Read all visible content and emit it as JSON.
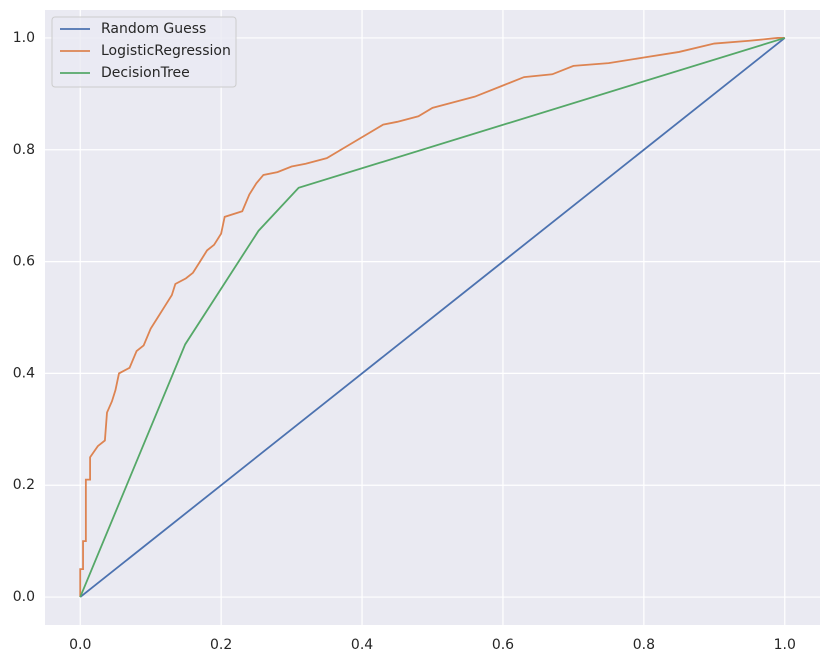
{
  "chart_data": {
    "type": "line",
    "series": [
      {
        "name": "Random Guess",
        "color": "#4c72b0",
        "x": [
          0,
          1
        ],
        "values": [
          0,
          1
        ]
      },
      {
        "name": "LogisticRegression",
        "color": "#dd8452",
        "x": [
          0,
          0,
          0.004,
          0.004,
          0.008,
          0.008,
          0.014,
          0.014,
          0.025,
          0.035,
          0.038,
          0.045,
          0.05,
          0.055,
          0.07,
          0.08,
          0.09,
          0.1,
          0.11,
          0.12,
          0.13,
          0.135,
          0.15,
          0.16,
          0.17,
          0.18,
          0.19,
          0.2,
          0.205,
          0.23,
          0.24,
          0.25,
          0.26,
          0.28,
          0.3,
          0.32,
          0.35,
          0.37,
          0.39,
          0.41,
          0.43,
          0.45,
          0.48,
          0.5,
          0.53,
          0.56,
          0.6,
          0.63,
          0.67,
          0.7,
          0.75,
          0.8,
          0.85,
          0.9,
          0.95,
          0.99,
          1
        ],
        "values": [
          0,
          0.05,
          0.05,
          0.1,
          0.1,
          0.21,
          0.21,
          0.25,
          0.27,
          0.28,
          0.33,
          0.35,
          0.37,
          0.4,
          0.41,
          0.44,
          0.45,
          0.48,
          0.5,
          0.52,
          0.54,
          0.56,
          0.57,
          0.58,
          0.6,
          0.62,
          0.63,
          0.65,
          0.68,
          0.69,
          0.72,
          0.74,
          0.755,
          0.76,
          0.77,
          0.775,
          0.785,
          0.8,
          0.815,
          0.83,
          0.845,
          0.85,
          0.86,
          0.875,
          0.885,
          0.895,
          0.915,
          0.93,
          0.935,
          0.95,
          0.955,
          0.965,
          0.975,
          0.99,
          0.995,
          1,
          1
        ]
      },
      {
        "name": "DecisionTree",
        "color": "#55a868",
        "x": [
          0,
          0.149,
          0.253,
          0.31,
          1
        ],
        "values": [
          0,
          0.452,
          0.655,
          0.732,
          1
        ]
      }
    ],
    "xlim": [
      -0.05,
      1.05
    ],
    "ylim": [
      -0.05,
      1.05
    ],
    "xticks": [
      {
        "value": 0,
        "label": "0.0"
      },
      0.2,
      0.4,
      0.6,
      0.8,
      {
        "value": 1,
        "label": "1.0"
      }
    ],
    "yticks": [
      {
        "value": 0,
        "label": "0.0"
      },
      0.2,
      0.4,
      0.6,
      0.8,
      {
        "value": 1,
        "label": "1.0"
      }
    ],
    "grid": true,
    "legend": "upper-left",
    "background": "#eaeaf2"
  }
}
